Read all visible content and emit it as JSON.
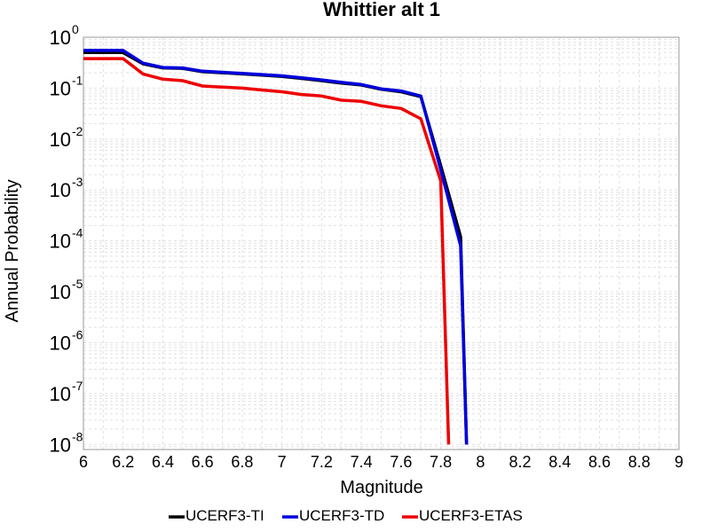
{
  "chart_data": {
    "type": "line",
    "title": "Whittier alt 1",
    "xlabel": "Magnitude",
    "ylabel": "Annual Probability",
    "xlim": [
      6,
      9
    ],
    "ylim_exponent": [
      -8.1,
      0
    ],
    "yscale": "log",
    "x_ticks": [
      "6",
      "6.2",
      "6.4",
      "6.6",
      "6.8",
      "7",
      "7.2",
      "7.4",
      "7.6",
      "7.8",
      "8",
      "8.2",
      "8.4",
      "8.6",
      "8.8",
      "9"
    ],
    "y_ticks": [
      {
        "base": "10",
        "exp": "0"
      },
      {
        "base": "10",
        "exp": "-1"
      },
      {
        "base": "10",
        "exp": "-2"
      },
      {
        "base": "10",
        "exp": "-3"
      },
      {
        "base": "10",
        "exp": "-4"
      },
      {
        "base": "10",
        "exp": "-5"
      },
      {
        "base": "10",
        "exp": "-6"
      },
      {
        "base": "10",
        "exp": "-7"
      },
      {
        "base": "10",
        "exp": "-8"
      }
    ],
    "grid": true,
    "legend_position": "bottom",
    "series": [
      {
        "name": "UCERF3-TI",
        "color": "#000000",
        "x": [
          6.0,
          6.1,
          6.2,
          6.3,
          6.4,
          6.5,
          6.6,
          6.7,
          6.8,
          6.9,
          7.0,
          7.1,
          7.2,
          7.3,
          7.4,
          7.5,
          7.6,
          7.7,
          7.8,
          7.9,
          7.93
        ],
        "y": [
          0.5,
          0.5,
          0.5,
          0.3,
          0.25,
          0.245,
          0.21,
          0.2,
          0.19,
          0.18,
          0.17,
          0.155,
          0.14,
          0.125,
          0.115,
          0.095,
          0.085,
          0.068,
          0.003,
          0.00012,
          1e-08
        ]
      },
      {
        "name": "UCERF3-TD",
        "color": "#0000dd",
        "x": [
          6.0,
          6.1,
          6.2,
          6.3,
          6.4,
          6.5,
          6.6,
          6.7,
          6.8,
          6.9,
          7.0,
          7.1,
          7.2,
          7.3,
          7.4,
          7.5,
          7.6,
          7.7,
          7.8,
          7.9,
          7.93
        ],
        "y": [
          0.55,
          0.55,
          0.55,
          0.31,
          0.255,
          0.25,
          0.215,
          0.205,
          0.195,
          0.185,
          0.175,
          0.16,
          0.145,
          0.13,
          0.118,
          0.097,
          0.088,
          0.07,
          0.0025,
          8e-05,
          1e-08
        ]
      },
      {
        "name": "UCERF3-ETAS",
        "color": "#ee0000",
        "x": [
          6.0,
          6.1,
          6.2,
          6.3,
          6.4,
          6.5,
          6.6,
          6.7,
          6.8,
          6.9,
          7.0,
          7.1,
          7.2,
          7.3,
          7.4,
          7.5,
          7.6,
          7.7,
          7.8,
          7.84
        ],
        "y": [
          0.38,
          0.38,
          0.38,
          0.19,
          0.15,
          0.14,
          0.11,
          0.105,
          0.1,
          0.092,
          0.085,
          0.075,
          0.07,
          0.058,
          0.055,
          0.045,
          0.04,
          0.025,
          0.0015,
          1e-08
        ]
      }
    ]
  }
}
